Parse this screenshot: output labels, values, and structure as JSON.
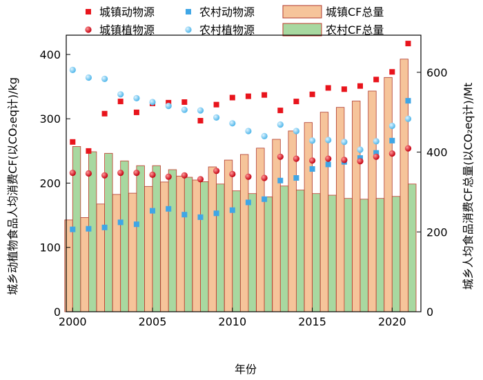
{
  "chart_data": {
    "type": "bar",
    "xlabel": "年份",
    "ylabel_left": "城乡动植物食品人均消费CF(以CO₂eq计)/kg",
    "ylabel_right": "城乡人均食品消费CF总量(以CO₂eq计)/Mt",
    "x": [
      2000,
      2001,
      2002,
      2003,
      2004,
      2005,
      2006,
      2007,
      2008,
      2009,
      2010,
      2011,
      2012,
      2013,
      2014,
      2015,
      2016,
      2017,
      2018,
      2019,
      2020,
      2021
    ],
    "xlim": [
      1999.6,
      2021.8
    ],
    "x_ticks": [
      2000,
      2005,
      2010,
      2015,
      2020
    ],
    "ylim_left": [
      0,
      430
    ],
    "y_ticks_left": [
      0,
      100,
      200,
      300,
      400
    ],
    "ylim_right": [
      0,
      693
    ],
    "y_ticks_right": [
      0,
      200,
      400,
      600
    ],
    "legend_position": "top",
    "series": [
      {
        "name": "城镇动物源",
        "kind": "scatter",
        "marker": "square",
        "axis": "left",
        "color": "#e8141c",
        "values": [
          264,
          250,
          308,
          327,
          310,
          324,
          325,
          326,
          297,
          322,
          333,
          335,
          337,
          313,
          327,
          338,
          348,
          346,
          351,
          361,
          373,
          417
        ]
      },
      {
        "name": "农村动物源",
        "kind": "scatter",
        "marker": "square",
        "axis": "left",
        "color": "#3fa6e6",
        "values": [
          128,
          129,
          131,
          139,
          136,
          157,
          160,
          151,
          147,
          153,
          158,
          170,
          175,
          204,
          208,
          222,
          229,
          233,
          239,
          247,
          266,
          328
        ]
      },
      {
        "name": "城镇植物源",
        "kind": "scatter",
        "marker": "circle",
        "axis": "left",
        "color": "#e8141c",
        "values": [
          216,
          215,
          212,
          216,
          216,
          213,
          210,
          212,
          206,
          219,
          214,
          210,
          208,
          241,
          238,
          235,
          238,
          236,
          234,
          241,
          246,
          254
        ]
      },
      {
        "name": "农村植物源",
        "kind": "scatter",
        "marker": "circle",
        "axis": "left",
        "color": "#6cc8f0",
        "values": [
          376,
          364,
          362,
          338,
          332,
          326,
          320,
          314,
          313,
          302,
          293,
          281,
          273,
          291,
          281,
          266,
          267,
          264,
          252,
          265,
          289,
          300
        ]
      },
      {
        "name": "城镇CF总量",
        "kind": "bar",
        "axis": "right",
        "color": "#f6c49a",
        "stroke": "#b03a2e",
        "values": [
          230,
          236,
          270,
          294,
          297,
          314,
          325,
          340,
          330,
          363,
          380,
          394,
          410,
          432,
          453,
          474,
          500,
          512,
          528,
          553,
          587,
          633
        ]
      },
      {
        "name": "农村CF总量",
        "kind": "bar",
        "axis": "right",
        "color": "#a8d8a0",
        "stroke": "#c0392b",
        "values": [
          414,
          401,
          397,
          378,
          366,
          366,
          356,
          337,
          326,
          320,
          303,
          296,
          288,
          315,
          305,
          296,
          292,
          284,
          282,
          284,
          289,
          320
        ]
      }
    ]
  }
}
